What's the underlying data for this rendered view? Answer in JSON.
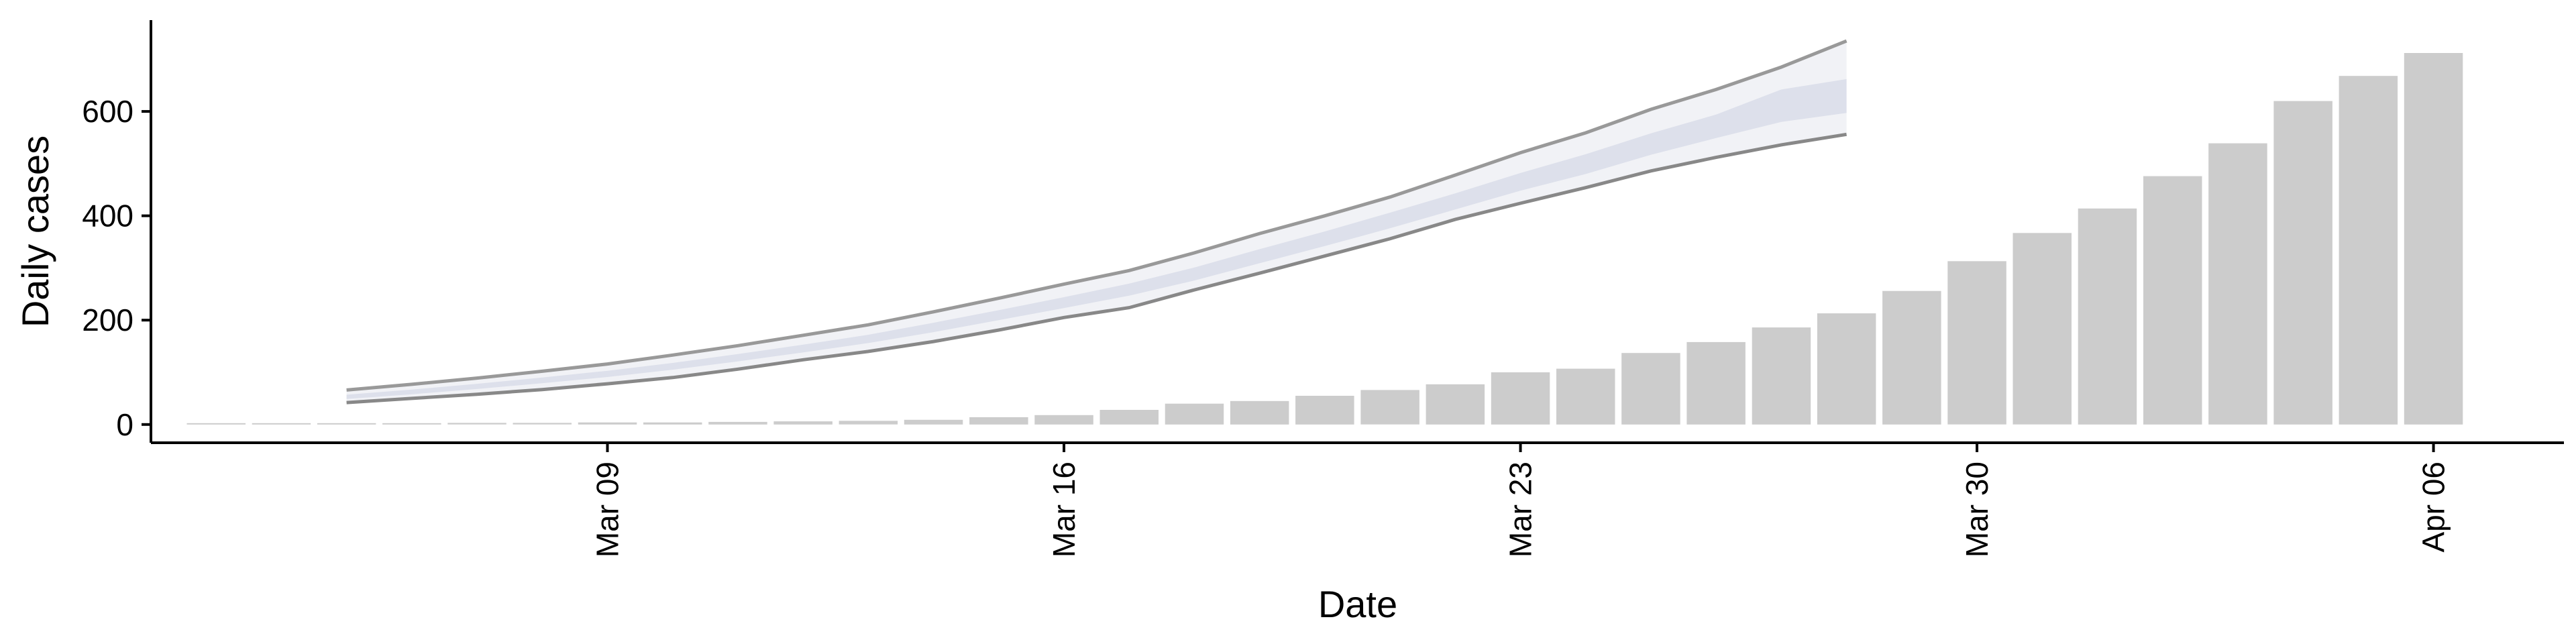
{
  "chart_data": {
    "type": "bar",
    "xlabel": "Date",
    "ylabel": "Daily cases",
    "x_tick_labels": [
      "Mar 09",
      "Mar 16",
      "Mar 23",
      "Mar 30",
      "Apr 06"
    ],
    "x_tick_dates": [
      "2020-03-09",
      "2020-03-16",
      "2020-03-23",
      "2020-03-30",
      "2020-04-06"
    ],
    "y_tick_labels": [
      "0",
      "200",
      "400",
      "600"
    ],
    "y_ticks": [
      0,
      200,
      400,
      600
    ],
    "ylim": [
      -35,
      775
    ],
    "xlim": [
      "2020-03-02",
      "2020-04-08"
    ],
    "grid": false,
    "legend": "none",
    "colors": {
      "bars": "#cccccc",
      "band_outer": "#eef0f5",
      "band_inner": "#d9dde9",
      "band_edge": "#999999"
    },
    "bars": {
      "dates": [
        "2020-03-03",
        "2020-03-04",
        "2020-03-05",
        "2020-03-06",
        "2020-03-07",
        "2020-03-08",
        "2020-03-09",
        "2020-03-10",
        "2020-03-11",
        "2020-03-12",
        "2020-03-13",
        "2020-03-14",
        "2020-03-15",
        "2020-03-16",
        "2020-03-17",
        "2020-03-18",
        "2020-03-19",
        "2020-03-20",
        "2020-03-21",
        "2020-03-22",
        "2020-03-23",
        "2020-03-24",
        "2020-03-25",
        "2020-03-26",
        "2020-03-27",
        "2020-03-28",
        "2020-03-29",
        "2020-03-30",
        "2020-03-31",
        "2020-04-01",
        "2020-04-02",
        "2020-04-03",
        "2020-04-04",
        "2020-04-05",
        "2020-04-06"
      ],
      "values": [
        1,
        1,
        2,
        2,
        3,
        3,
        4,
        4,
        5,
        6,
        7,
        9,
        14,
        18,
        28,
        40,
        45,
        55,
        66,
        77,
        100,
        107,
        137,
        158,
        186,
        213,
        256,
        313,
        367,
        414,
        476,
        539,
        620,
        668,
        712
      ]
    },
    "forecast": {
      "dates": [
        "2020-03-05",
        "2020-03-06",
        "2020-03-07",
        "2020-03-08",
        "2020-03-09",
        "2020-03-10",
        "2020-03-11",
        "2020-03-12",
        "2020-03-13",
        "2020-03-14",
        "2020-03-15",
        "2020-03-16",
        "2020-03-17",
        "2020-03-18",
        "2020-03-19",
        "2020-03-20",
        "2020-03-21",
        "2020-03-22",
        "2020-03-23",
        "2020-03-24",
        "2020-03-25",
        "2020-03-26",
        "2020-03-27",
        "2020-03-28"
      ],
      "upper": [
        66,
        77,
        89,
        102,
        116,
        133,
        151,
        171,
        191,
        216,
        242,
        269,
        295,
        329,
        366,
        400,
        436,
        478,
        521,
        559,
        604,
        642,
        685,
        735
      ],
      "inner_upper": [
        57,
        67,
        78,
        90,
        103,
        118,
        135,
        153,
        172,
        195,
        219,
        244,
        270,
        301,
        336,
        370,
        406,
        443,
        482,
        518,
        558,
        594,
        642,
        662
      ],
      "inner_lower": [
        49,
        58,
        68,
        79,
        91,
        105,
        121,
        138,
        156,
        177,
        200,
        223,
        247,
        276,
        309,
        342,
        376,
        412,
        448,
        480,
        517,
        549,
        580,
        597
      ],
      "lower": [
        42,
        50,
        58,
        67,
        78,
        90,
        106,
        124,
        140,
        159,
        181,
        205,
        224,
        258,
        290,
        323,
        356,
        393,
        424,
        454,
        486,
        512,
        536,
        556
      ]
    }
  }
}
